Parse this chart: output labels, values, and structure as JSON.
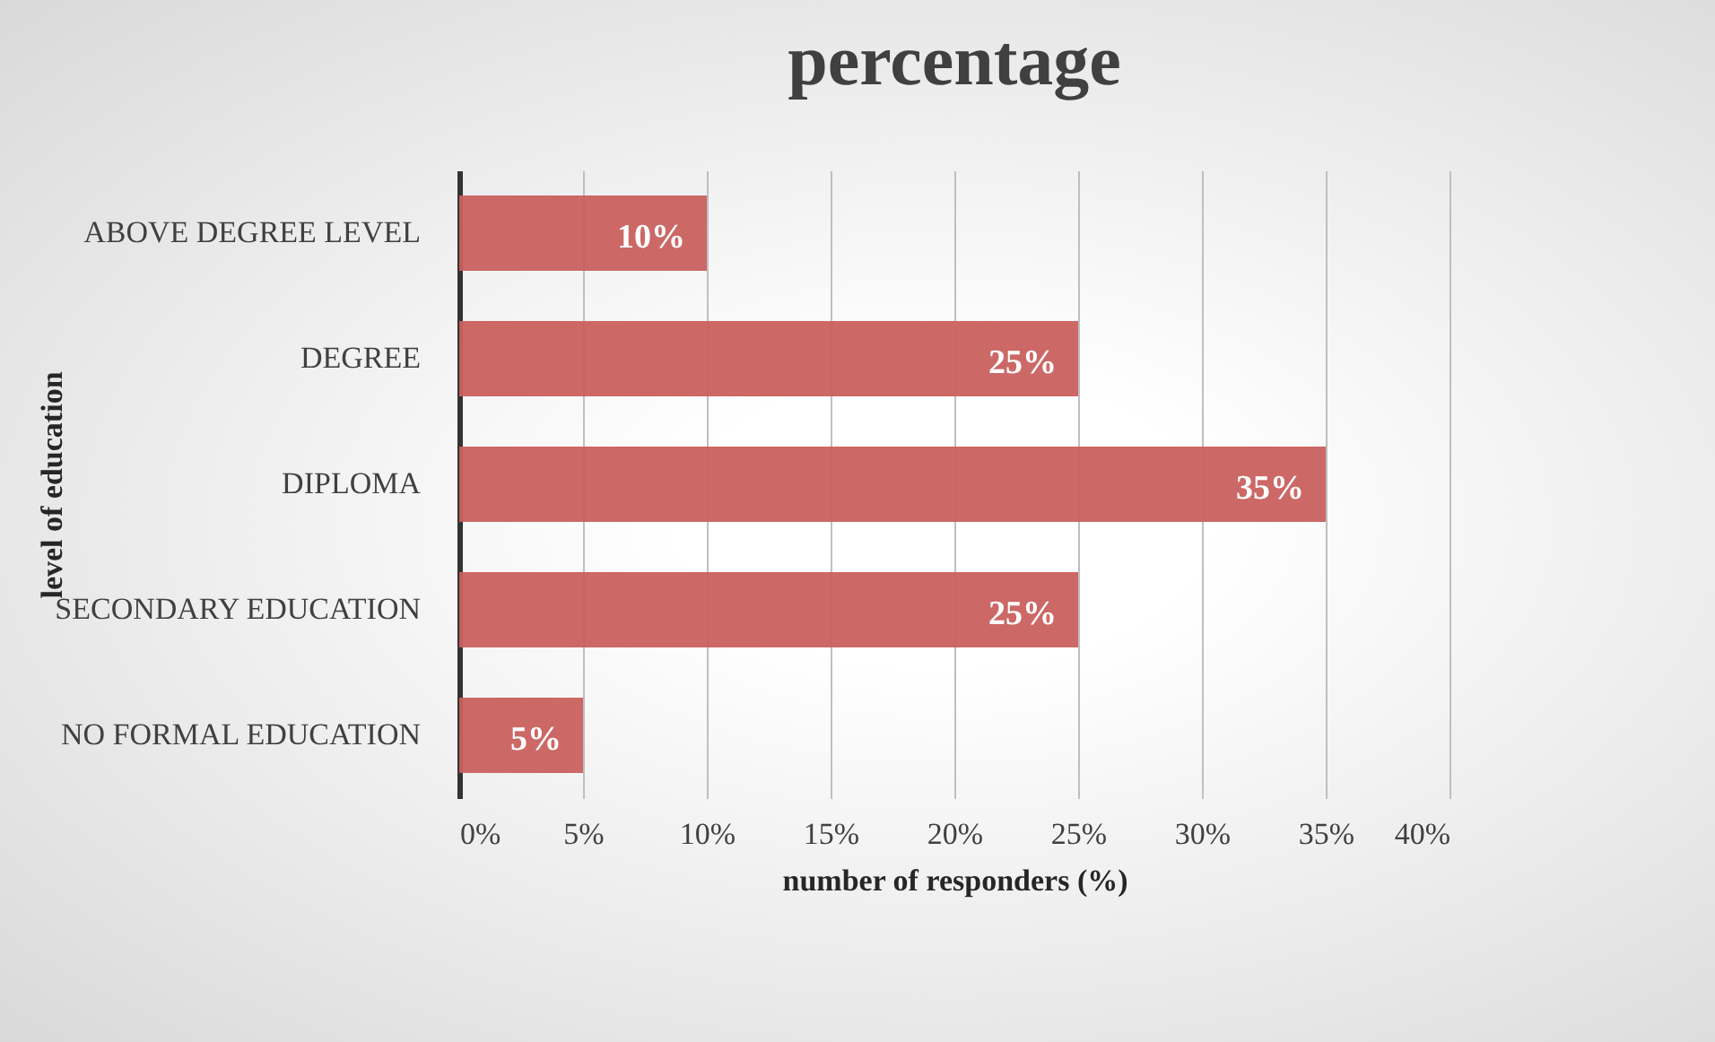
{
  "chart_data": {
    "type": "bar",
    "orientation": "horizontal",
    "title": "percentage",
    "xlabel": "number of responders (%)",
    "ylabel": "level of education",
    "categories": [
      "ABOVE DEGREE LEVEL",
      "DEGREE",
      "DIPLOMA",
      "SECONDARY EDUCATION",
      "NO FORMAL EDUCATION"
    ],
    "values": [
      10,
      25,
      35,
      25,
      5
    ],
    "value_labels": [
      "10%",
      "25%",
      "35%",
      "25%",
      "5%"
    ],
    "color": "#c9605e",
    "xlim": [
      0,
      40
    ],
    "xticks": [
      {
        "value": 0,
        "label": "0%"
      },
      {
        "value": 5,
        "label": "5%"
      },
      {
        "value": 10,
        "label": "10%"
      },
      {
        "value": 15,
        "label": "15%"
      },
      {
        "value": 20,
        "label": "20%"
      },
      {
        "value": 25,
        "label": "25%"
      },
      {
        "value": 30,
        "label": "30%"
      },
      {
        "value": 35,
        "label": "35%"
      },
      {
        "value": 40,
        "label": "40%"
      }
    ],
    "grid": "x"
  }
}
